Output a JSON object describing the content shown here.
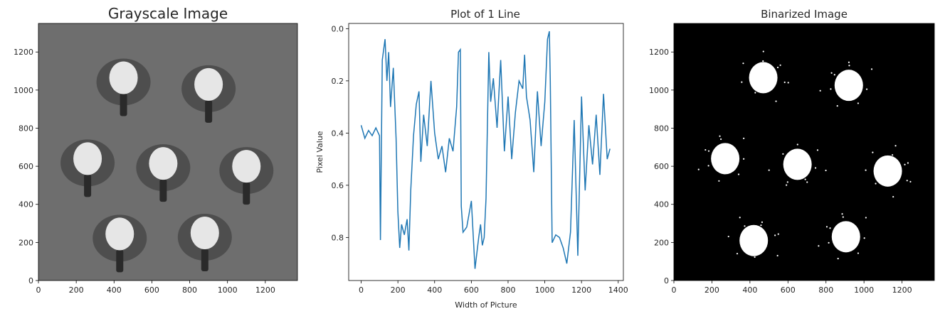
{
  "chart_data": [
    {
      "type": "image",
      "title": "Grayscale Image",
      "xticks": [
        0,
        200,
        400,
        600,
        800,
        1000,
        1200
      ],
      "yticks": [
        0,
        200,
        400,
        600,
        800,
        1000,
        1200
      ],
      "xlim": [
        0,
        1370
      ],
      "ylim": [
        1350,
        0
      ],
      "background_gray": "#6e6e6e",
      "roses": [
        {
          "x": 430,
          "y": 230
        },
        {
          "x": 880,
          "y": 235
        },
        {
          "x": 260,
          "y": 625
        },
        {
          "x": 660,
          "y": 600
        },
        {
          "x": 1100,
          "y": 585
        },
        {
          "x": 450,
          "y": 1050
        },
        {
          "x": 900,
          "y": 1015
        }
      ]
    },
    {
      "type": "line",
      "title": "Plot of 1 Line",
      "xlabel": "Width of Picture",
      "ylabel": "Pixel Value",
      "xlim": [
        -68,
        1428
      ],
      "ylim": [
        -0.02,
        0.965
      ],
      "xticks": [
        0,
        200,
        400,
        600,
        800,
        1000,
        1200,
        1400
      ],
      "yticks": [
        0.0,
        0.2,
        0.4,
        0.6,
        0.8
      ],
      "line_color": "#1f77b4",
      "series": [
        {
          "name": "line",
          "x": [
            0,
            20,
            40,
            60,
            80,
            100,
            105,
            115,
            130,
            140,
            150,
            160,
            175,
            190,
            200,
            210,
            220,
            235,
            250,
            260,
            270,
            285,
            300,
            315,
            325,
            340,
            360,
            380,
            400,
            420,
            440,
            460,
            480,
            500,
            520,
            530,
            540,
            545,
            555,
            575,
            600,
            620,
            640,
            650,
            660,
            670,
            680,
            695,
            705,
            720,
            740,
            760,
            780,
            800,
            820,
            840,
            860,
            880,
            890,
            900,
            920,
            940,
            960,
            980,
            1000,
            1015,
            1025,
            1030,
            1040,
            1060,
            1080,
            1100,
            1120,
            1140,
            1160,
            1180,
            1200,
            1220,
            1240,
            1260,
            1280,
            1300,
            1320,
            1340,
            1355
          ],
          "y": [
            0.37,
            0.42,
            0.39,
            0.41,
            0.38,
            0.41,
            0.81,
            0.12,
            0.04,
            0.2,
            0.09,
            0.3,
            0.15,
            0.42,
            0.7,
            0.84,
            0.75,
            0.79,
            0.73,
            0.85,
            0.62,
            0.41,
            0.29,
            0.24,
            0.51,
            0.33,
            0.45,
            0.2,
            0.4,
            0.5,
            0.45,
            0.55,
            0.42,
            0.47,
            0.3,
            0.09,
            0.08,
            0.68,
            0.78,
            0.76,
            0.66,
            0.92,
            0.8,
            0.75,
            0.83,
            0.8,
            0.65,
            0.09,
            0.28,
            0.19,
            0.38,
            0.12,
            0.47,
            0.26,
            0.5,
            0.32,
            0.2,
            0.23,
            0.1,
            0.26,
            0.35,
            0.55,
            0.24,
            0.45,
            0.28,
            0.04,
            0.01,
            0.2,
            0.82,
            0.79,
            0.8,
            0.84,
            0.9,
            0.78,
            0.35,
            0.87,
            0.26,
            0.62,
            0.37,
            0.52,
            0.33,
            0.56,
            0.25,
            0.5,
            0.46
          ]
        }
      ]
    },
    {
      "type": "image",
      "title": "Binarized Image",
      "xticks": [
        0,
        200,
        400,
        600,
        800,
        1000,
        1200
      ],
      "yticks": [
        0,
        200,
        400,
        600,
        800,
        1000,
        1200
      ],
      "xlim": [
        0,
        1370
      ],
      "ylim": [
        1350,
        0
      ],
      "background_gray": "#000000",
      "blobs": [
        {
          "x": 420,
          "y": 210
        },
        {
          "x": 905,
          "y": 230
        },
        {
          "x": 270,
          "y": 640
        },
        {
          "x": 650,
          "y": 610
        },
        {
          "x": 1125,
          "y": 575
        },
        {
          "x": 470,
          "y": 1065
        },
        {
          "x": 920,
          "y": 1025
        }
      ]
    }
  ]
}
